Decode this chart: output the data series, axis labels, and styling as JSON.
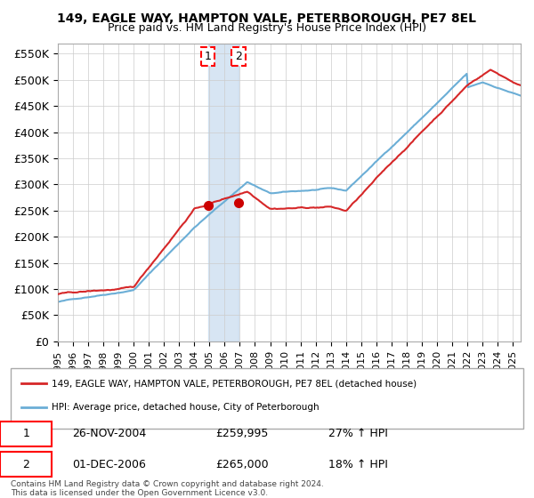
{
  "title": "149, EAGLE WAY, HAMPTON VALE, PETERBOROUGH, PE7 8EL",
  "subtitle": "Price paid vs. HM Land Registry's House Price Index (HPI)",
  "ylabel_ticks": [
    "£0",
    "£50K",
    "£100K",
    "£150K",
    "£200K",
    "£250K",
    "£300K",
    "£350K",
    "£400K",
    "£450K",
    "£500K",
    "£550K"
  ],
  "ytick_values": [
    0,
    50000,
    100000,
    150000,
    200000,
    250000,
    300000,
    350000,
    400000,
    450000,
    500000,
    550000
  ],
  "ylim": [
    0,
    570000
  ],
  "xlim_start": 1995.0,
  "xlim_end": 2025.5,
  "sale1_x": 2004.9,
  "sale1_y": 259995,
  "sale1_label": "1",
  "sale1_date": "26-NOV-2004",
  "sale1_price": "£259,995",
  "sale1_hpi": "27% ↑ HPI",
  "sale2_x": 2006.92,
  "sale2_y": 265000,
  "sale2_label": "2",
  "sale2_date": "01-DEC-2006",
  "sale2_price": "£265,000",
  "sale2_hpi": "18% ↑ HPI",
  "hpi_color": "#6baed6",
  "price_color": "#d62728",
  "sale_marker_color": "#cc0000",
  "highlight_color": "#c6dbef",
  "legend_label_price": "149, EAGLE WAY, HAMPTON VALE, PETERBOROUGH, PE7 8EL (detached house)",
  "legend_label_hpi": "HPI: Average price, detached house, City of Peterborough",
  "footer": "Contains HM Land Registry data © Crown copyright and database right 2024.\nThis data is licensed under the Open Government Licence v3.0.",
  "background_color": "#ffffff",
  "grid_color": "#cccccc"
}
